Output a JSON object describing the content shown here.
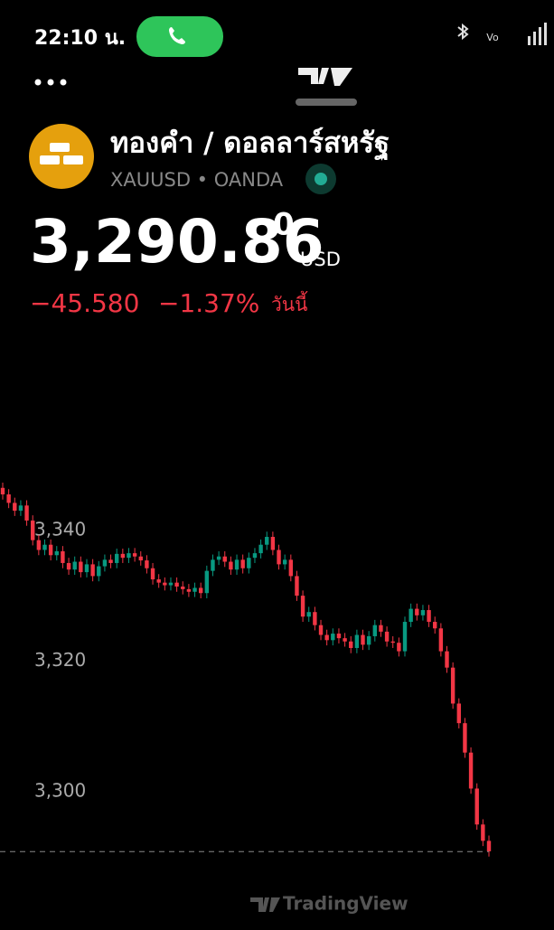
{
  "status_bar": {
    "time": "22:10 น."
  },
  "header": {
    "title": "ทองคำ / ดอลลาร์สหรัฐ",
    "subtitle": "XAUUSD • OANDA",
    "price": "3,290.86",
    "price_last_digit": "0",
    "currency": "USD",
    "change": "−45.580",
    "change_pct": "−1.37%",
    "period": "วันนี้"
  },
  "chart_data": {
    "type": "candlestick",
    "up_color": "#089981",
    "down_color": "#f23645",
    "ylim": [
      3288.4,
      3352
    ],
    "yticks": [
      {
        "value": 3300,
        "label": "3,300"
      },
      {
        "value": 3320,
        "label": "3,320"
      },
      {
        "value": 3340,
        "label": "3,340"
      }
    ],
    "price_line": 3290.86,
    "ohlc": [
      [
        3346.5,
        3347.3,
        3344.7,
        3345.5
      ],
      [
        3345.5,
        3346.3,
        3343.4,
        3344.2
      ],
      [
        3344.2,
        3345.0,
        3342.2,
        3343.0
      ],
      [
        3343.0,
        3344.6,
        3342.2,
        3343.8
      ],
      [
        3343.8,
        3344.6,
        3340.7,
        3341.5
      ],
      [
        3341.5,
        3342.3,
        3337.7,
        3338.5
      ],
      [
        3338.5,
        3339.3,
        3336.2,
        3337.0
      ],
      [
        3337.0,
        3338.6,
        3336.2,
        3337.8
      ],
      [
        3337.8,
        3338.6,
        3335.4,
        3336.2
      ],
      [
        3336.2,
        3337.6,
        3335.4,
        3336.8
      ],
      [
        3336.8,
        3337.6,
        3334.2,
        3335.0
      ],
      [
        3335.0,
        3335.8,
        3333.2,
        3334.0
      ],
      [
        3334.0,
        3336.0,
        3333.2,
        3335.2
      ],
      [
        3335.2,
        3336.0,
        3332.8,
        3333.6
      ],
      [
        3333.6,
        3335.6,
        3332.8,
        3334.8
      ],
      [
        3334.8,
        3335.6,
        3332.2,
        3333.0
      ],
      [
        3333.0,
        3335.3,
        3332.2,
        3334.5
      ],
      [
        3334.5,
        3336.3,
        3333.7,
        3335.5
      ],
      [
        3335.5,
        3336.3,
        3334.2,
        3335.0
      ],
      [
        3335.0,
        3337.2,
        3334.2,
        3336.4
      ],
      [
        3336.4,
        3337.2,
        3335.0,
        3335.8
      ],
      [
        3335.8,
        3337.3,
        3335.0,
        3336.5
      ],
      [
        3336.5,
        3337.3,
        3335.2,
        3336.0
      ],
      [
        3336.0,
        3336.8,
        3334.6,
        3335.4
      ],
      [
        3335.4,
        3336.2,
        3333.4,
        3334.2
      ],
      [
        3334.2,
        3335.0,
        3331.7,
        3332.5
      ],
      [
        3332.5,
        3333.3,
        3331.2,
        3332.0
      ],
      [
        3332.0,
        3332.8,
        3330.8,
        3331.6
      ],
      [
        3331.6,
        3332.8,
        3330.8,
        3332.0
      ],
      [
        3332.0,
        3332.8,
        3330.6,
        3331.4
      ],
      [
        3331.4,
        3332.2,
        3330.2,
        3331.0
      ],
      [
        3331.0,
        3331.8,
        3329.8,
        3330.6
      ],
      [
        3330.6,
        3332.0,
        3329.8,
        3331.2
      ],
      [
        3331.2,
        3332.0,
        3329.6,
        3330.4
      ],
      [
        3330.4,
        3334.6,
        3329.6,
        3333.8
      ],
      [
        3333.8,
        3336.3,
        3333.0,
        3335.5
      ],
      [
        3335.5,
        3336.8,
        3334.7,
        3336.0
      ],
      [
        3336.0,
        3336.8,
        3334.4,
        3335.2
      ],
      [
        3335.2,
        3336.0,
        3333.2,
        3334.0
      ],
      [
        3334.0,
        3336.3,
        3333.2,
        3335.5
      ],
      [
        3335.5,
        3336.3,
        3333.4,
        3334.2
      ],
      [
        3334.2,
        3336.6,
        3333.4,
        3335.8
      ],
      [
        3335.8,
        3337.3,
        3335.0,
        3336.5
      ],
      [
        3336.5,
        3338.6,
        3335.7,
        3337.8
      ],
      [
        3337.8,
        3339.8,
        3337.0,
        3339.0
      ],
      [
        3339.0,
        3339.8,
        3336.2,
        3337.0
      ],
      [
        3337.0,
        3337.8,
        3334.0,
        3334.8
      ],
      [
        3334.8,
        3336.3,
        3334.0,
        3335.5
      ],
      [
        3335.5,
        3336.3,
        3332.2,
        3333.0
      ],
      [
        3333.0,
        3333.8,
        3329.2,
        3330.0
      ],
      [
        3330.0,
        3330.8,
        3326.0,
        3326.8
      ],
      [
        3326.8,
        3328.3,
        3326.0,
        3327.5
      ],
      [
        3327.5,
        3328.3,
        3324.7,
        3325.5
      ],
      [
        3325.5,
        3326.3,
        3323.2,
        3324.0
      ],
      [
        3324.0,
        3324.8,
        3322.4,
        3323.2
      ],
      [
        3323.2,
        3325.0,
        3322.4,
        3324.2
      ],
      [
        3324.2,
        3325.0,
        3322.7,
        3323.5
      ],
      [
        3323.5,
        3324.3,
        3322.2,
        3323.0
      ],
      [
        3323.0,
        3323.8,
        3321.2,
        3322.0
      ],
      [
        3322.0,
        3324.8,
        3321.2,
        3324.0
      ],
      [
        3324.0,
        3324.8,
        3321.7,
        3322.5
      ],
      [
        3322.5,
        3324.6,
        3321.7,
        3323.8
      ],
      [
        3323.8,
        3326.3,
        3323.0,
        3325.5
      ],
      [
        3325.5,
        3326.3,
        3323.7,
        3324.5
      ],
      [
        3324.5,
        3325.3,
        3322.2,
        3323.0
      ],
      [
        3323.0,
        3323.8,
        3322.0,
        3322.8
      ],
      [
        3322.8,
        3323.6,
        3320.7,
        3321.5
      ],
      [
        3321.5,
        3326.8,
        3320.7,
        3326.0
      ],
      [
        3326.0,
        3328.8,
        3325.2,
        3328.0
      ],
      [
        3328.0,
        3328.8,
        3326.2,
        3327.0
      ],
      [
        3327.0,
        3328.6,
        3326.2,
        3327.8
      ],
      [
        3327.8,
        3328.6,
        3325.2,
        3326.0
      ],
      [
        3326.0,
        3326.8,
        3324.2,
        3325.0
      ],
      [
        3325.0,
        3325.8,
        3320.7,
        3321.5
      ],
      [
        3321.5,
        3322.3,
        3318.2,
        3319.0
      ],
      [
        3319.0,
        3319.8,
        3312.7,
        3313.5
      ],
      [
        3313.5,
        3314.3,
        3309.7,
        3310.5
      ],
      [
        3310.5,
        3311.3,
        3305.2,
        3306.0
      ],
      [
        3306.0,
        3306.8,
        3299.7,
        3300.5
      ],
      [
        3300.5,
        3301.3,
        3294.2,
        3295.0
      ],
      [
        3295.0,
        3295.8,
        3291.7,
        3292.5
      ],
      [
        3292.5,
        3293.3,
        3290.1,
        3290.9
      ]
    ]
  },
  "watermark": "TradingView"
}
